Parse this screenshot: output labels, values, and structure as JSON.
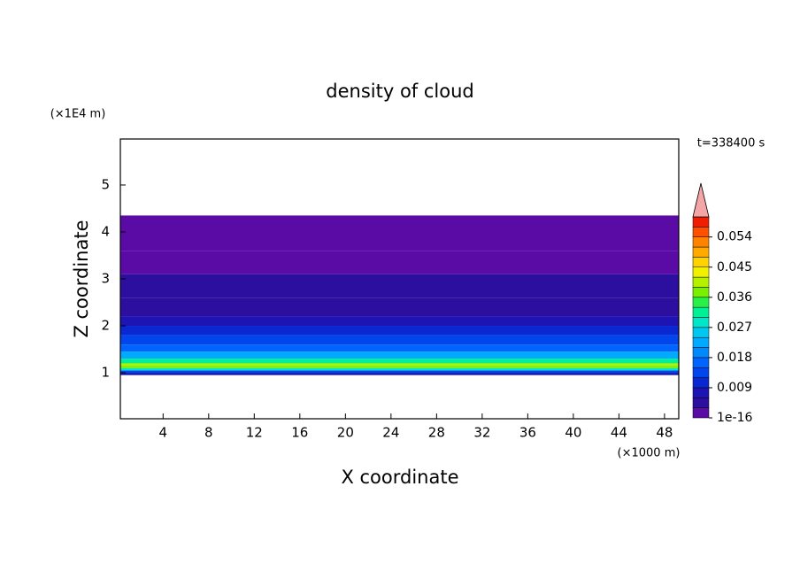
{
  "chart_data": {
    "type": "contour",
    "title": "density of cloud",
    "x_label": "X coordinate",
    "y_label": "Z coordinate",
    "x_unit": "(×1000 m)",
    "y_unit": "(×1E4 m)",
    "time_label": "t=338400 s",
    "xlim": [
      0.25,
      49.25
    ],
    "xticks": [
      4,
      8,
      12,
      16,
      20,
      24,
      28,
      32,
      36,
      40,
      44,
      48
    ],
    "ylim": [
      0.02,
      5.98
    ],
    "yticks": [
      1,
      2,
      3,
      4,
      5
    ],
    "z_edges": [
      0.95,
      1.0,
      1.05,
      1.1,
      1.15,
      1.2,
      1.3,
      1.45,
      1.6,
      1.8,
      2.0,
      2.2,
      2.6,
      3.1,
      3.6,
      4.35
    ],
    "values": [
      0.007,
      0.012,
      0.027,
      0.038,
      0.041,
      0.03,
      0.021,
      0.016,
      0.013,
      0.01,
      0.008,
      0.005,
      0.004,
      0.002,
      0.001
    ],
    "levels": [
      1e-16,
      0.003,
      0.006,
      0.009,
      0.012,
      0.015,
      0.018,
      0.021,
      0.024,
      0.027,
      0.03,
      0.033,
      0.036,
      0.039,
      0.042,
      0.045,
      0.048,
      0.051,
      0.054,
      0.057,
      0.06
    ],
    "colors": [
      "#5a0aa5",
      "#2d0fa0",
      "#1e14b4",
      "#0a28d2",
      "#0046ec",
      "#0064ff",
      "#0088ff",
      "#00aaff",
      "#00c8f0",
      "#00e6c8",
      "#00f096",
      "#28f046",
      "#78f000",
      "#b4f000",
      "#f0f000",
      "#ffd200",
      "#ffaa00",
      "#ff8200",
      "#ff5000",
      "#f01e00"
    ],
    "extend_color": "#f4a6a6",
    "colorbar_ticks": [
      {
        "value": 1e-16,
        "label": "1e-16"
      },
      0.009,
      0.018,
      0.027,
      0.036,
      0.045,
      0.054
    ]
  }
}
